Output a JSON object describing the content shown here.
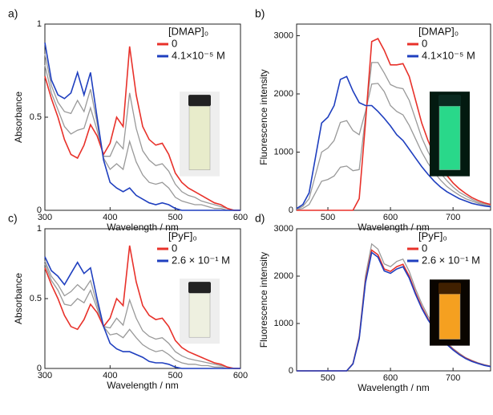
{
  "chart_data": [
    {
      "type": "line",
      "label": "a)",
      "xlabel": "Wavelength / nm",
      "ylabel": "Absorbance",
      "legend_title": "[DMAP]₀",
      "x": [
        300,
        310,
        320,
        330,
        340,
        350,
        360,
        370,
        380,
        390,
        400,
        410,
        420,
        430,
        440,
        450,
        460,
        470,
        480,
        490,
        500,
        510,
        520,
        530,
        540,
        550,
        560,
        570,
        580,
        590,
        600
      ],
      "xlim": [
        300,
        600
      ],
      "xticks": [
        300,
        400,
        500,
        600
      ],
      "ylim": [
        0,
        1
      ],
      "yticks": [
        0,
        0.5,
        1
      ],
      "series": [
        {
          "color": "#999999",
          "values": [
            0.84,
            0.67,
            0.58,
            0.53,
            0.52,
            0.59,
            0.53,
            0.65,
            0.47,
            0.28,
            0.22,
            0.25,
            0.22,
            0.37,
            0.26,
            0.19,
            0.15,
            0.14,
            0.15,
            0.12,
            0.07,
            0.05,
            0.04,
            0.03,
            0.03,
            0.02,
            0.01,
            0.01,
            0,
            0,
            0
          ]
        },
        {
          "color": "#999999",
          "values": [
            0.78,
            0.63,
            0.54,
            0.45,
            0.41,
            0.43,
            0.44,
            0.55,
            0.43,
            0.29,
            0.29,
            0.37,
            0.33,
            0.63,
            0.44,
            0.32,
            0.27,
            0.24,
            0.25,
            0.21,
            0.14,
            0.1,
            0.08,
            0.07,
            0.05,
            0.04,
            0.03,
            0.02,
            0.01,
            0,
            0
          ]
        },
        {
          "name": "0",
          "color": "#e8312a",
          "values": [
            0.72,
            0.6,
            0.5,
            0.38,
            0.3,
            0.28,
            0.35,
            0.46,
            0.4,
            0.3,
            0.36,
            0.5,
            0.45,
            0.88,
            0.62,
            0.45,
            0.38,
            0.35,
            0.36,
            0.3,
            0.2,
            0.15,
            0.12,
            0.1,
            0.08,
            0.06,
            0.04,
            0.03,
            0.01,
            0,
            0
          ]
        },
        {
          "name": "4.1×10⁻⁵ M",
          "color": "#1f3fbf",
          "values": [
            0.9,
            0.7,
            0.62,
            0.6,
            0.63,
            0.74,
            0.62,
            0.74,
            0.5,
            0.27,
            0.15,
            0.12,
            0.1,
            0.12,
            0.08,
            0.06,
            0.04,
            0.03,
            0.04,
            0.03,
            0.01,
            0,
            0,
            0,
            0,
            0,
            0,
            0,
            0,
            0,
            0
          ]
        }
      ]
    },
    {
      "type": "line",
      "label": "b)",
      "xlabel": "Wavelength / nm",
      "ylabel": "Fluorescence intensity",
      "legend_title": "[DMAP]₀",
      "x": [
        450,
        460,
        470,
        480,
        490,
        500,
        510,
        520,
        530,
        540,
        550,
        560,
        570,
        580,
        590,
        600,
        610,
        620,
        630,
        640,
        650,
        660,
        670,
        680,
        690,
        700,
        710,
        720,
        730,
        740,
        750,
        760
      ],
      "xlim": [
        450,
        760
      ],
      "xticks": [
        500,
        600,
        700
      ],
      "ylim": [
        0,
        3200
      ],
      "yticks": [
        0,
        1000,
        2000,
        3000
      ],
      "series": [
        {
          "color": "#999999",
          "values": [
            20,
            67,
            200,
            600,
            1000,
            1070,
            1200,
            1510,
            1540,
            1370,
            1300,
            1700,
            2170,
            2180,
            2040,
            1800,
            1700,
            1640,
            1460,
            1230,
            1000,
            810,
            650,
            520,
            410,
            330,
            260,
            200,
            160,
            120,
            90,
            70
          ]
        },
        {
          "color": "#999999",
          "values": [
            10,
            33,
            100,
            300,
            500,
            530,
            590,
            740,
            760,
            680,
            700,
            1600,
            2540,
            2540,
            2360,
            2160,
            2110,
            2090,
            1890,
            1570,
            1250,
            1010,
            800,
            640,
            510,
            400,
            310,
            250,
            190,
            140,
            110,
            90
          ]
        },
        {
          "name": "0",
          "color": "#e8312a",
          "values": [
            0,
            0,
            0,
            0,
            0,
            0,
            0,
            0,
            0,
            0,
            200,
            1500,
            2900,
            2950,
            2750,
            2500,
            2500,
            2520,
            2300,
            1900,
            1500,
            1200,
            950,
            750,
            600,
            470,
            370,
            290,
            220,
            170,
            130,
            100
          ]
        },
        {
          "name": "4.1×10⁻⁵ M",
          "color": "#1f3fbf",
          "values": [
            30,
            100,
            300,
            900,
            1500,
            1600,
            1800,
            2250,
            2300,
            2050,
            1850,
            1800,
            1800,
            1700,
            1580,
            1450,
            1300,
            1200,
            1050,
            900,
            750,
            620,
            500,
            400,
            320,
            260,
            200,
            160,
            120,
            95,
            75,
            60
          ]
        }
      ]
    },
    {
      "type": "line",
      "label": "c)",
      "xlabel": "Wavelength / nm",
      "ylabel": "Absorbance",
      "legend_title": "[PyF]₀",
      "x": [
        300,
        310,
        320,
        330,
        340,
        350,
        360,
        370,
        380,
        390,
        400,
        410,
        420,
        430,
        440,
        450,
        460,
        470,
        480,
        490,
        500,
        510,
        520,
        530,
        540,
        550,
        560,
        570,
        580,
        590,
        600
      ],
      "xlim": [
        300,
        600
      ],
      "xticks": [
        300,
        400,
        500,
        600
      ],
      "ylim": [
        0,
        1
      ],
      "yticks": [
        0,
        0.5,
        1
      ],
      "series": [
        {
          "color": "#999999",
          "values": [
            0.77,
            0.66,
            0.6,
            0.52,
            0.55,
            0.6,
            0.56,
            0.63,
            0.46,
            0.3,
            0.24,
            0.25,
            0.22,
            0.28,
            0.22,
            0.17,
            0.14,
            0.12,
            0.13,
            0.1,
            0.06,
            0.04,
            0.03,
            0.03,
            0.02,
            0.02,
            0.01,
            0.01,
            0,
            0,
            0
          ]
        },
        {
          "color": "#999999",
          "values": [
            0.75,
            0.63,
            0.56,
            0.46,
            0.45,
            0.5,
            0.47,
            0.56,
            0.43,
            0.3,
            0.29,
            0.36,
            0.31,
            0.49,
            0.36,
            0.27,
            0.23,
            0.21,
            0.22,
            0.18,
            0.12,
            0.09,
            0.07,
            0.06,
            0.05,
            0.04,
            0.03,
            0.02,
            0.01,
            0,
            0
          ]
        },
        {
          "name": "0",
          "color": "#e8312a",
          "values": [
            0.72,
            0.6,
            0.5,
            0.38,
            0.3,
            0.28,
            0.35,
            0.46,
            0.4,
            0.3,
            0.36,
            0.5,
            0.45,
            0.88,
            0.62,
            0.45,
            0.38,
            0.35,
            0.36,
            0.3,
            0.2,
            0.15,
            0.12,
            0.1,
            0.08,
            0.06,
            0.04,
            0.03,
            0.01,
            0,
            0
          ]
        },
        {
          "name": "2.6 × 10⁻¹ M",
          "color": "#1f3fbf",
          "values": [
            0.8,
            0.7,
            0.66,
            0.6,
            0.68,
            0.76,
            0.68,
            0.72,
            0.5,
            0.3,
            0.18,
            0.14,
            0.12,
            0.12,
            0.1,
            0.08,
            0.05,
            0.04,
            0.04,
            0.03,
            0.01,
            0,
            0,
            0,
            0,
            0,
            0,
            0,
            0,
            0,
            0
          ]
        }
      ]
    },
    {
      "type": "line",
      "label": "d)",
      "xlabel": "Wavelength / nm",
      "ylabel": "Fluorescence intensity",
      "legend_title": "[PyF]₀",
      "x": [
        450,
        460,
        470,
        480,
        490,
        500,
        510,
        520,
        530,
        540,
        550,
        560,
        570,
        580,
        590,
        600,
        610,
        620,
        630,
        640,
        650,
        660,
        670,
        680,
        690,
        700,
        710,
        720,
        730,
        740,
        750,
        760
      ],
      "xlim": [
        450,
        760
      ],
      "xticks": [
        500,
        600,
        700
      ],
      "ylim": [
        0,
        3000
      ],
      "yticks": [
        0,
        1000,
        2000,
        3000
      ],
      "series": [
        {
          "color": "#999999",
          "values": [
            0,
            0,
            0,
            0,
            0,
            0,
            0,
            0,
            0,
            160,
            740,
            2000,
            2680,
            2570,
            2260,
            2200,
            2310,
            2360,
            2100,
            1730,
            1420,
            1160,
            950,
            760,
            600,
            470,
            370,
            280,
            220,
            170,
            130,
            100
          ]
        },
        {
          "name": "0",
          "color": "#e8312a",
          "values": [
            0,
            0,
            0,
            0,
            0,
            0,
            0,
            0,
            0,
            150,
            700,
            1900,
            2550,
            2450,
            2150,
            2100,
            2200,
            2250,
            2000,
            1650,
            1350,
            1100,
            900,
            720,
            570,
            450,
            350,
            270,
            210,
            160,
            120,
            95
          ]
        },
        {
          "name": "2.6 × 10⁻¹ M",
          "color": "#1f3fbf",
          "values": [
            0,
            0,
            0,
            0,
            0,
            0,
            0,
            0,
            0,
            145,
            680,
            1860,
            2500,
            2400,
            2110,
            2060,
            2150,
            2200,
            1960,
            1620,
            1320,
            1080,
            880,
            700,
            560,
            440,
            340,
            260,
            200,
            155,
            115,
            90
          ]
        }
      ]
    }
  ]
}
